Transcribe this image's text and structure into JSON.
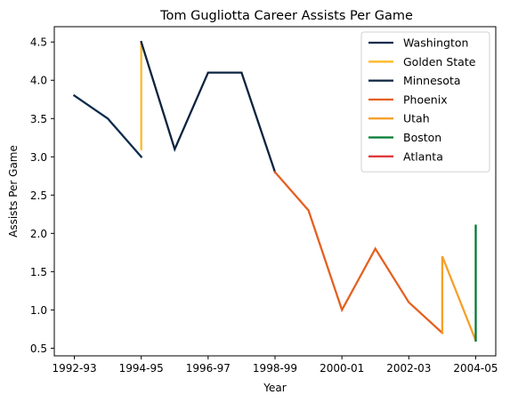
{
  "chart_data": {
    "type": "line",
    "title": "Tom Gugliotta Career Assists Per Game",
    "xlabel": "Year",
    "ylabel": "Assists Per Game",
    "x_ticks": [
      "1992-93",
      "1994-95",
      "1996-97",
      "1998-99",
      "2000-01",
      "2002-03",
      "2004-05"
    ],
    "y_ticks": [
      "0.5",
      "1.0",
      "1.5",
      "2.0",
      "2.5",
      "3.0",
      "3.5",
      "4.0",
      "4.5"
    ],
    "xlim": [
      -0.6,
      12.6
    ],
    "ylim": [
      0.4,
      4.7
    ],
    "grid": false,
    "legend_position": "top-right",
    "series": [
      {
        "name": "Washington",
        "color": "#0d2b4e",
        "x": [
          0,
          1,
          2
        ],
        "y": [
          3.8,
          3.5,
          3.0
        ]
      },
      {
        "name": "Golden State",
        "color": "#fdb927",
        "x": [
          2,
          2
        ],
        "y": [
          3.1,
          4.5
        ]
      },
      {
        "name": "Minnesota",
        "color": "#0c2340",
        "x": [
          2,
          3,
          4,
          5,
          6
        ],
        "y": [
          4.5,
          3.1,
          4.1,
          4.1,
          2.8
        ]
      },
      {
        "name": "Phoenix",
        "color": "#e56020",
        "x": [
          6,
          7,
          8,
          9,
          10,
          11
        ],
        "y": [
          2.8,
          2.3,
          1.0,
          1.8,
          1.1,
          0.7
        ]
      },
      {
        "name": "Utah",
        "color": "#f5a02a",
        "x": [
          11,
          11,
          12
        ],
        "y": [
          0.7,
          1.7,
          0.6
        ]
      },
      {
        "name": "Boston",
        "color": "#007a33",
        "x": [
          12,
          12
        ],
        "y": [
          0.6,
          2.1
        ]
      },
      {
        "name": "Atlanta",
        "color": "#e03a3e",
        "x": [],
        "y": []
      }
    ]
  }
}
